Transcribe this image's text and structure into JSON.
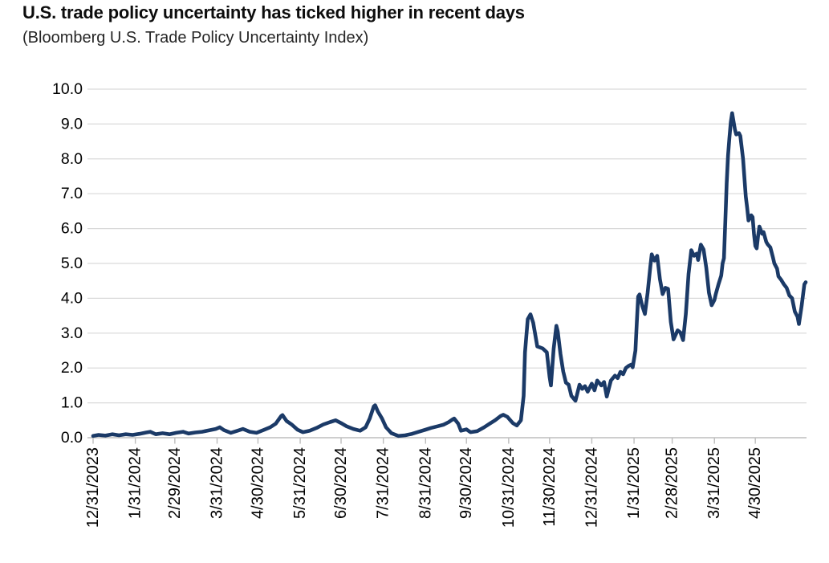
{
  "header": {
    "title": "U.S. trade policy uncertainty has ticked higher in recent days",
    "subtitle": "(Bloomberg U.S. Trade Policy Uncertainty Index)"
  },
  "chart_data": {
    "type": "line",
    "title": "U.S. trade policy uncertainty has ticked higher in recent days",
    "subtitle": "(Bloomberg U.S. Trade Policy Uncertainty Index)",
    "xlabel": "",
    "ylabel": "",
    "ylim": [
      0,
      10
    ],
    "ytick_step": 1.0,
    "grid": "horizontal",
    "legend": "none",
    "line_color": "#1b3a67",
    "grid_color": "#d9d9d9",
    "axis_color": "#bdbdbd",
    "text_color": "#000000",
    "yticks": [
      "10.0",
      "9.0",
      "8.0",
      "7.0",
      "6.0",
      "5.0",
      "4.0",
      "3.0",
      "2.0",
      "1.0",
      "0.0"
    ],
    "xticks": [
      {
        "label": "12/31/2023",
        "date": "2023-12-31"
      },
      {
        "label": "1/31/2024",
        "date": "2024-01-31"
      },
      {
        "label": "2/29/2024",
        "date": "2024-02-29"
      },
      {
        "label": "3/31/2024",
        "date": "2024-03-31"
      },
      {
        "label": "4/30/2024",
        "date": "2024-04-30"
      },
      {
        "label": "5/31/2024",
        "date": "2024-05-31"
      },
      {
        "label": "6/30/2024",
        "date": "2024-06-30"
      },
      {
        "label": "7/31/2024",
        "date": "2024-07-31"
      },
      {
        "label": "8/31/2024",
        "date": "2024-08-31"
      },
      {
        "label": "9/30/2024",
        "date": "2024-09-30"
      },
      {
        "label": "10/31/2024",
        "date": "2024-10-31"
      },
      {
        "label": "11/30/2024",
        "date": "2024-11-30"
      },
      {
        "label": "12/31/2024",
        "date": "2024-12-31"
      },
      {
        "label": "1/31/2025",
        "date": "2025-01-31"
      },
      {
        "label": "2/28/2025",
        "date": "2025-02-28"
      },
      {
        "label": "3/31/2025",
        "date": "2025-03-31"
      },
      {
        "label": "4/30/2025",
        "date": "2025-04-30"
      }
    ],
    "series": [
      {
        "name": "Bloomberg U.S. Trade Policy Uncertainty Index",
        "color": "#1b3a67",
        "points": [
          [
            "2023-12-31",
            0.05
          ],
          [
            "2024-01-04",
            0.08
          ],
          [
            "2024-01-09",
            0.06
          ],
          [
            "2024-01-14",
            0.1
          ],
          [
            "2024-01-19",
            0.07
          ],
          [
            "2024-01-24",
            0.1
          ],
          [
            "2024-01-29",
            0.08
          ],
          [
            "2024-02-03",
            0.11
          ],
          [
            "2024-02-08",
            0.15
          ],
          [
            "2024-02-11",
            0.17
          ],
          [
            "2024-02-15",
            0.1
          ],
          [
            "2024-02-20",
            0.13
          ],
          [
            "2024-02-25",
            0.1
          ],
          [
            "2024-03-01",
            0.14
          ],
          [
            "2024-03-06",
            0.17
          ],
          [
            "2024-03-10",
            0.12
          ],
          [
            "2024-03-15",
            0.15
          ],
          [
            "2024-03-20",
            0.17
          ],
          [
            "2024-03-26",
            0.22
          ],
          [
            "2024-03-30",
            0.25
          ],
          [
            "2024-04-02",
            0.3
          ],
          [
            "2024-04-05",
            0.22
          ],
          [
            "2024-04-10",
            0.14
          ],
          [
            "2024-04-15",
            0.2
          ],
          [
            "2024-04-19",
            0.25
          ],
          [
            "2024-04-24",
            0.17
          ],
          [
            "2024-04-29",
            0.14
          ],
          [
            "2024-05-04",
            0.22
          ],
          [
            "2024-05-09",
            0.3
          ],
          [
            "2024-05-13",
            0.4
          ],
          [
            "2024-05-17",
            0.62
          ],
          [
            "2024-05-18",
            0.65
          ],
          [
            "2024-05-21",
            0.48
          ],
          [
            "2024-05-25",
            0.37
          ],
          [
            "2024-05-29",
            0.23
          ],
          [
            "2024-06-02",
            0.16
          ],
          [
            "2024-06-07",
            0.2
          ],
          [
            "2024-06-12",
            0.28
          ],
          [
            "2024-06-17",
            0.38
          ],
          [
            "2024-06-22",
            0.45
          ],
          [
            "2024-06-26",
            0.5
          ],
          [
            "2024-06-30",
            0.42
          ],
          [
            "2024-07-04",
            0.33
          ],
          [
            "2024-07-09",
            0.25
          ],
          [
            "2024-07-14",
            0.2
          ],
          [
            "2024-07-18",
            0.3
          ],
          [
            "2024-07-21",
            0.55
          ],
          [
            "2024-07-24",
            0.9
          ],
          [
            "2024-07-25",
            0.93
          ],
          [
            "2024-07-27",
            0.75
          ],
          [
            "2024-07-30",
            0.55
          ],
          [
            "2024-08-02",
            0.3
          ],
          [
            "2024-08-06",
            0.13
          ],
          [
            "2024-08-11",
            0.05
          ],
          [
            "2024-08-16",
            0.07
          ],
          [
            "2024-08-21",
            0.11
          ],
          [
            "2024-08-26",
            0.17
          ],
          [
            "2024-08-31",
            0.23
          ],
          [
            "2024-09-04",
            0.28
          ],
          [
            "2024-09-09",
            0.33
          ],
          [
            "2024-09-13",
            0.37
          ],
          [
            "2024-09-17",
            0.45
          ],
          [
            "2024-09-20",
            0.53
          ],
          [
            "2024-09-21",
            0.55
          ],
          [
            "2024-09-24",
            0.4
          ],
          [
            "2024-09-26",
            0.2
          ],
          [
            "2024-09-30",
            0.24
          ],
          [
            "2024-10-03",
            0.16
          ],
          [
            "2024-10-08",
            0.19
          ],
          [
            "2024-10-13",
            0.3
          ],
          [
            "2024-10-17",
            0.4
          ],
          [
            "2024-10-21",
            0.5
          ],
          [
            "2024-10-25",
            0.62
          ],
          [
            "2024-10-27",
            0.66
          ],
          [
            "2024-10-30",
            0.6
          ],
          [
            "2024-11-03",
            0.42
          ],
          [
            "2024-11-06",
            0.35
          ],
          [
            "2024-11-09",
            0.5
          ],
          [
            "2024-11-11",
            1.2
          ],
          [
            "2024-11-12",
            2.45
          ],
          [
            "2024-11-14",
            3.4
          ],
          [
            "2024-11-16",
            3.54
          ],
          [
            "2024-11-18",
            3.3
          ],
          [
            "2024-11-21",
            2.62
          ],
          [
            "2024-11-25",
            2.56
          ],
          [
            "2024-11-28",
            2.45
          ],
          [
            "2024-11-30",
            1.75
          ],
          [
            "2024-12-01",
            1.5
          ],
          [
            "2024-12-03",
            2.55
          ],
          [
            "2024-12-05",
            3.21
          ],
          [
            "2024-12-06",
            3.05
          ],
          [
            "2024-12-08",
            2.4
          ],
          [
            "2024-12-10",
            1.9
          ],
          [
            "2024-12-12",
            1.58
          ],
          [
            "2024-12-14",
            1.52
          ],
          [
            "2024-12-16",
            1.2
          ],
          [
            "2024-12-19",
            1.06
          ],
          [
            "2024-12-22",
            1.52
          ],
          [
            "2024-12-24",
            1.4
          ],
          [
            "2024-12-26",
            1.48
          ],
          [
            "2024-12-28",
            1.32
          ],
          [
            "2024-12-31",
            1.55
          ],
          [
            "2025-01-02",
            1.36
          ],
          [
            "2025-01-04",
            1.64
          ],
          [
            "2025-01-07",
            1.5
          ],
          [
            "2025-01-09",
            1.6
          ],
          [
            "2025-01-11",
            1.18
          ],
          [
            "2025-01-14",
            1.64
          ],
          [
            "2025-01-17",
            1.78
          ],
          [
            "2025-01-19",
            1.71
          ],
          [
            "2025-01-21",
            1.89
          ],
          [
            "2025-01-23",
            1.82
          ],
          [
            "2025-01-25",
            2.0
          ],
          [
            "2025-01-27",
            2.06
          ],
          [
            "2025-01-29",
            2.1
          ],
          [
            "2025-01-30",
            2.02
          ],
          [
            "2025-02-01",
            2.5
          ],
          [
            "2025-02-02",
            3.3
          ],
          [
            "2025-02-03",
            4.05
          ],
          [
            "2025-02-04",
            4.11
          ],
          [
            "2025-02-06",
            3.78
          ],
          [
            "2025-02-08",
            3.55
          ],
          [
            "2025-02-10",
            4.16
          ],
          [
            "2025-02-12",
            4.92
          ],
          [
            "2025-02-13",
            5.26
          ],
          [
            "2025-02-15",
            5.08
          ],
          [
            "2025-02-17",
            5.22
          ],
          [
            "2025-02-19",
            4.55
          ],
          [
            "2025-02-21",
            4.12
          ],
          [
            "2025-02-23",
            4.3
          ],
          [
            "2025-02-25",
            4.27
          ],
          [
            "2025-02-27",
            3.32
          ],
          [
            "2025-03-01",
            2.82
          ],
          [
            "2025-03-04",
            3.08
          ],
          [
            "2025-03-06",
            3.02
          ],
          [
            "2025-03-08",
            2.8
          ],
          [
            "2025-03-10",
            3.55
          ],
          [
            "2025-03-12",
            4.7
          ],
          [
            "2025-03-14",
            5.38
          ],
          [
            "2025-03-16",
            5.22
          ],
          [
            "2025-03-18",
            5.28
          ],
          [
            "2025-03-19",
            5.1
          ],
          [
            "2025-03-21",
            5.54
          ],
          [
            "2025-03-23",
            5.4
          ],
          [
            "2025-03-25",
            4.87
          ],
          [
            "2025-03-27",
            4.16
          ],
          [
            "2025-03-29",
            3.8
          ],
          [
            "2025-03-31",
            3.95
          ],
          [
            "2025-04-01",
            4.12
          ],
          [
            "2025-04-03",
            4.4
          ],
          [
            "2025-04-05",
            4.65
          ],
          [
            "2025-04-06",
            5.0
          ],
          [
            "2025-04-07",
            5.15
          ],
          [
            "2025-04-08",
            6.2
          ],
          [
            "2025-04-09",
            7.3
          ],
          [
            "2025-04-10",
            8.1
          ],
          [
            "2025-04-11",
            8.6
          ],
          [
            "2025-04-12",
            9.05
          ],
          [
            "2025-04-13",
            9.31
          ],
          [
            "2025-04-15",
            8.85
          ],
          [
            "2025-04-16",
            8.7
          ],
          [
            "2025-04-18",
            8.74
          ],
          [
            "2025-04-19",
            8.66
          ],
          [
            "2025-04-21",
            8.0
          ],
          [
            "2025-04-23",
            6.92
          ],
          [
            "2025-04-24",
            6.6
          ],
          [
            "2025-04-25",
            6.23
          ],
          [
            "2025-04-27",
            6.38
          ],
          [
            "2025-04-28",
            6.33
          ],
          [
            "2025-04-29",
            5.85
          ],
          [
            "2025-04-30",
            5.5
          ],
          [
            "2025-05-01",
            5.43
          ],
          [
            "2025-05-02",
            5.78
          ],
          [
            "2025-05-03",
            6.06
          ],
          [
            "2025-05-05",
            5.85
          ],
          [
            "2025-05-06",
            5.9
          ],
          [
            "2025-05-08",
            5.62
          ],
          [
            "2025-05-09",
            5.55
          ],
          [
            "2025-05-11",
            5.46
          ],
          [
            "2025-05-13",
            5.16
          ],
          [
            "2025-05-14",
            5.0
          ],
          [
            "2025-05-16",
            4.85
          ],
          [
            "2025-05-17",
            4.63
          ],
          [
            "2025-05-19",
            4.53
          ],
          [
            "2025-05-21",
            4.4
          ],
          [
            "2025-05-23",
            4.3
          ],
          [
            "2025-05-25",
            4.08
          ],
          [
            "2025-05-27",
            4.0
          ],
          [
            "2025-05-29",
            3.62
          ],
          [
            "2025-05-31",
            3.47
          ],
          [
            "2025-06-01",
            3.26
          ],
          [
            "2025-06-03",
            3.78
          ],
          [
            "2025-06-05",
            4.4
          ],
          [
            "2025-06-06",
            4.46
          ]
        ]
      }
    ]
  }
}
